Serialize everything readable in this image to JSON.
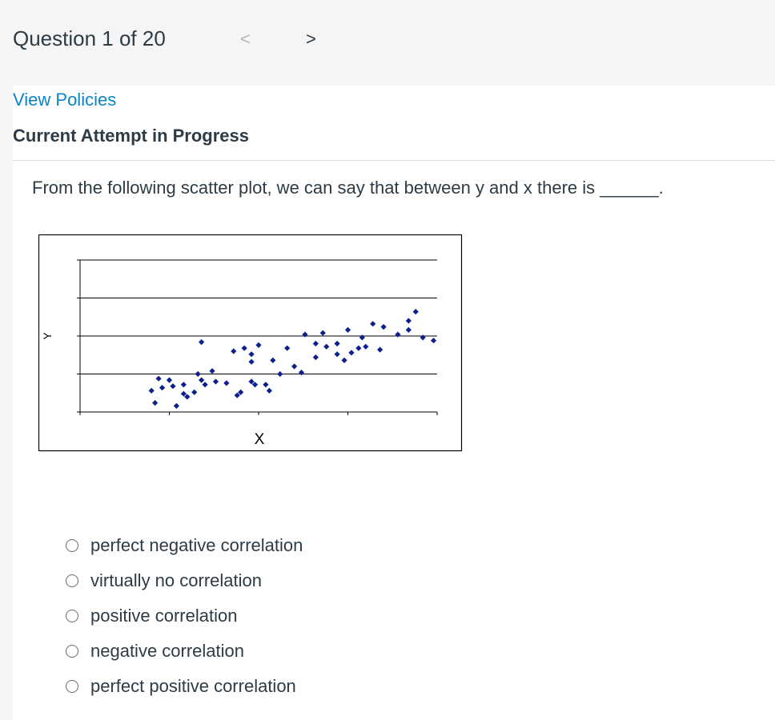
{
  "header": {
    "question_counter": "Question 1 of 20",
    "prev_symbol": "<",
    "next_symbol": ">"
  },
  "links": {
    "view_policies": "View Policies"
  },
  "status": {
    "attempt": "Current Attempt in Progress"
  },
  "question": {
    "text": "From the following scatter plot, we can say that between y and x there is ______."
  },
  "chart_data": {
    "type": "scatter",
    "title": "",
    "xlabel": "X",
    "ylabel": "Y",
    "xlim": [
      0,
      10
    ],
    "ylim": [
      0,
      10
    ],
    "grid": true,
    "marker_color": "#0d1f8c",
    "points": [
      [
        2.1,
        0.6
      ],
      [
        2.7,
        0.4
      ],
      [
        2.0,
        1.4
      ],
      [
        2.3,
        1.6
      ],
      [
        2.2,
        2.2
      ],
      [
        2.5,
        2.1
      ],
      [
        2.6,
        1.7
      ],
      [
        2.9,
        1.2
      ],
      [
        2.9,
        1.8
      ],
      [
        3.2,
        1.3
      ],
      [
        3.4,
        2.1
      ],
      [
        3.5,
        1.8
      ],
      [
        3.8,
        2.0
      ],
      [
        4.1,
        1.9
      ],
      [
        3.3,
        2.5
      ],
      [
        3.7,
        2.7
      ],
      [
        4.4,
        1.1
      ],
      [
        4.5,
        1.3
      ],
      [
        4.8,
        2.0
      ],
      [
        4.9,
        1.8
      ],
      [
        5.3,
        1.4
      ],
      [
        5.0,
        4.4
      ],
      [
        4.6,
        4.2
      ],
      [
        4.8,
        3.8
      ],
      [
        4.8,
        3.3
      ],
      [
        5.2,
        1.8
      ],
      [
        5.6,
        2.5
      ],
      [
        5.4,
        3.4
      ],
      [
        5.8,
        4.2
      ],
      [
        3.4,
        4.6
      ],
      [
        3.0,
        1.0
      ],
      [
        4.3,
        4.0
      ],
      [
        6.0,
        3.0
      ],
      [
        6.2,
        2.6
      ],
      [
        6.3,
        5.1
      ],
      [
        6.6,
        4.5
      ],
      [
        6.6,
        3.6
      ],
      [
        6.8,
        5.2
      ],
      [
        6.9,
        4.3
      ],
      [
        7.2,
        3.8
      ],
      [
        7.2,
        4.5
      ],
      [
        7.4,
        3.4
      ],
      [
        7.5,
        5.4
      ],
      [
        7.6,
        3.9
      ],
      [
        7.8,
        4.2
      ],
      [
        7.9,
        4.9
      ],
      [
        8.0,
        4.3
      ],
      [
        8.2,
        5.8
      ],
      [
        8.4,
        4.1
      ],
      [
        8.5,
        5.6
      ],
      [
        8.9,
        5.1
      ],
      [
        9.2,
        6.0
      ],
      [
        9.2,
        5.4
      ],
      [
        9.4,
        6.6
      ],
      [
        9.6,
        4.9
      ],
      [
        9.9,
        4.7
      ]
    ]
  },
  "answers": [
    {
      "label": "perfect negative correlation"
    },
    {
      "label": "virtually no correlation"
    },
    {
      "label": "positive correlation"
    },
    {
      "label": "negative correlation"
    },
    {
      "label": "perfect positive correlation"
    }
  ]
}
